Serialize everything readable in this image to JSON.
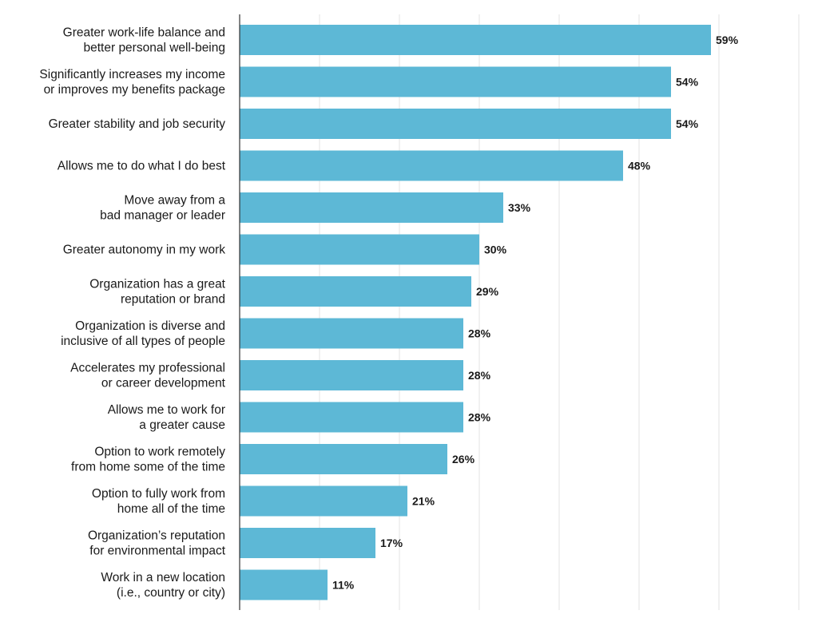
{
  "chart_data": {
    "type": "bar",
    "orientation": "horizontal",
    "title": "",
    "xlabel": "",
    "ylabel": "",
    "xlim": [
      0,
      70
    ],
    "grid": true,
    "bar_color": "#5db8d6",
    "gridline_color": "#e3e3e3",
    "axis_color": "#333333",
    "value_suffix": "%",
    "categories": [
      [
        "Greater work-life balance and",
        "better personal well-being"
      ],
      [
        "Significantly increases my income",
        "or improves my benefits package"
      ],
      [
        "Greater stability and job security"
      ],
      [
        "Allows me to do what I do best"
      ],
      [
        "Move away from a",
        "bad manager or leader"
      ],
      [
        "Greater autonomy in my work"
      ],
      [
        "Organization has a great",
        "reputation or brand"
      ],
      [
        "Organization is diverse and",
        "inclusive of all types of people"
      ],
      [
        "Accelerates my professional",
        "or career development"
      ],
      [
        "Allows me to work for",
        "a greater cause"
      ],
      [
        "Option to work remotely",
        "from home some of the time"
      ],
      [
        "Option to fully work from",
        "home all of the time"
      ],
      [
        "Organization’s reputation",
        "for environmental impact"
      ],
      [
        "Work in a new location",
        "(i.e., country or city)"
      ]
    ],
    "values": [
      59,
      54,
      54,
      48,
      33,
      30,
      29,
      28,
      28,
      28,
      26,
      21,
      17,
      11
    ],
    "value_labels": [
      "59%",
      "54%",
      "54%",
      "48%",
      "33%",
      "30%",
      "29%",
      "28%",
      "28%",
      "28%",
      "26%",
      "21%",
      "17%",
      "11%"
    ]
  }
}
